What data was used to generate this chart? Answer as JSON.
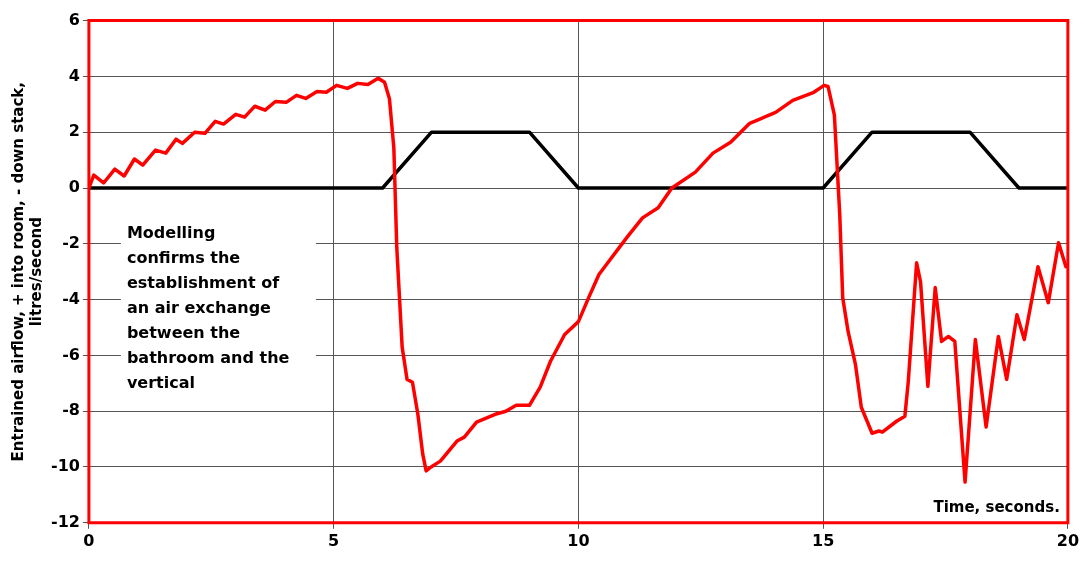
{
  "chart_data": {
    "type": "line",
    "xlabel": "Time, seconds.",
    "ylabel": "Entrained airflow, + into room, - down stack, litres/second",
    "annotations": [
      "Modelling confirms the establishment of an air exchange between the bathroom and the vertical"
    ],
    "xlim": [
      0,
      20
    ],
    "xticks": [
      0,
      5,
      10,
      15,
      20
    ],
    "ylim": [
      -12,
      6
    ],
    "yticks": [
      -12,
      -10,
      -8,
      -6,
      -4,
      -2,
      0,
      2,
      4,
      6
    ],
    "grid": true,
    "legend": false,
    "marker": "none",
    "line_style": "solid",
    "series": [
      {
        "color": "#ff0000",
        "x": [
          0,
          0.1,
          0.3,
          0.53,
          0.72,
          0.93,
          1.1,
          1.36,
          1.57,
          1.78,
          1.91,
          2.16,
          2.37,
          2.58,
          2.75,
          3.0,
          3.18,
          3.39,
          3.6,
          3.81,
          4.03,
          4.24,
          4.43,
          4.66,
          4.85,
          5.06,
          5.28,
          5.49,
          5.7,
          5.91,
          6.04,
          6.14,
          6.23,
          6.29,
          6.4,
          6.5,
          6.61,
          6.72,
          6.82,
          6.89,
          6.99,
          7.18,
          7.52,
          7.67,
          7.92,
          8.3,
          8.52,
          8.73,
          9.0,
          9.22,
          9.43,
          9.72,
          10.0,
          10.21,
          10.42,
          10.57,
          11.0,
          11.31,
          11.63,
          11.91,
          12.39,
          12.75,
          13.11,
          13.5,
          14.03,
          14.38,
          14.81,
          15.02,
          15.1,
          15.23,
          15.34,
          15.4,
          15.51,
          15.66,
          15.78,
          16.0,
          16.14,
          16.21,
          16.5,
          16.67,
          16.74,
          16.91,
          16.99,
          17.14,
          17.29,
          17.42,
          17.56,
          17.69,
          17.9,
          18.11,
          18.33,
          18.58,
          18.75,
          18.96,
          19.11,
          19.39,
          19.6,
          19.81,
          19.96
        ],
        "values": [
          0,
          0.46,
          0.18,
          0.68,
          0.43,
          1.04,
          0.82,
          1.36,
          1.25,
          1.75,
          1.6,
          2.0,
          1.96,
          2.39,
          2.29,
          2.64,
          2.54,
          2.93,
          2.79,
          3.1,
          3.07,
          3.32,
          3.21,
          3.46,
          3.43,
          3.68,
          3.57,
          3.75,
          3.71,
          3.93,
          3.79,
          3.2,
          1.43,
          -2.14,
          -5.71,
          -6.86,
          -6.96,
          -8.1,
          -9.54,
          -10.14,
          -10.0,
          -9.79,
          -9.07,
          -8.93,
          -8.39,
          -8.11,
          -8.0,
          -7.79,
          -7.79,
          -7.14,
          -6.21,
          -5.25,
          -4.79,
          -3.93,
          -3.1,
          -2.75,
          -1.75,
          -1.07,
          -0.71,
          0,
          0.57,
          1.25,
          1.64,
          2.32,
          2.71,
          3.14,
          3.43,
          3.68,
          3.64,
          2.61,
          -0.96,
          -3.93,
          -5.14,
          -6.32,
          -7.86,
          -8.79,
          -8.71,
          -8.75,
          -8.36,
          -8.18,
          -6.93,
          -2.68,
          -3.36,
          -7.11,
          -3.57,
          -5.5,
          -5.32,
          -5.5,
          -10.54,
          -5.43,
          -8.57,
          -5.32,
          -6.86,
          -4.54,
          -5.43,
          -2.82,
          -4.11,
          -1.96,
          -2.82
        ]
      },
      {
        "color": "#000000",
        "x": [
          0,
          6,
          7,
          9,
          10,
          15,
          16,
          18,
          19,
          20
        ],
        "values": [
          0,
          0,
          2,
          2,
          0,
          0,
          2,
          2,
          0,
          0
        ]
      }
    ]
  }
}
